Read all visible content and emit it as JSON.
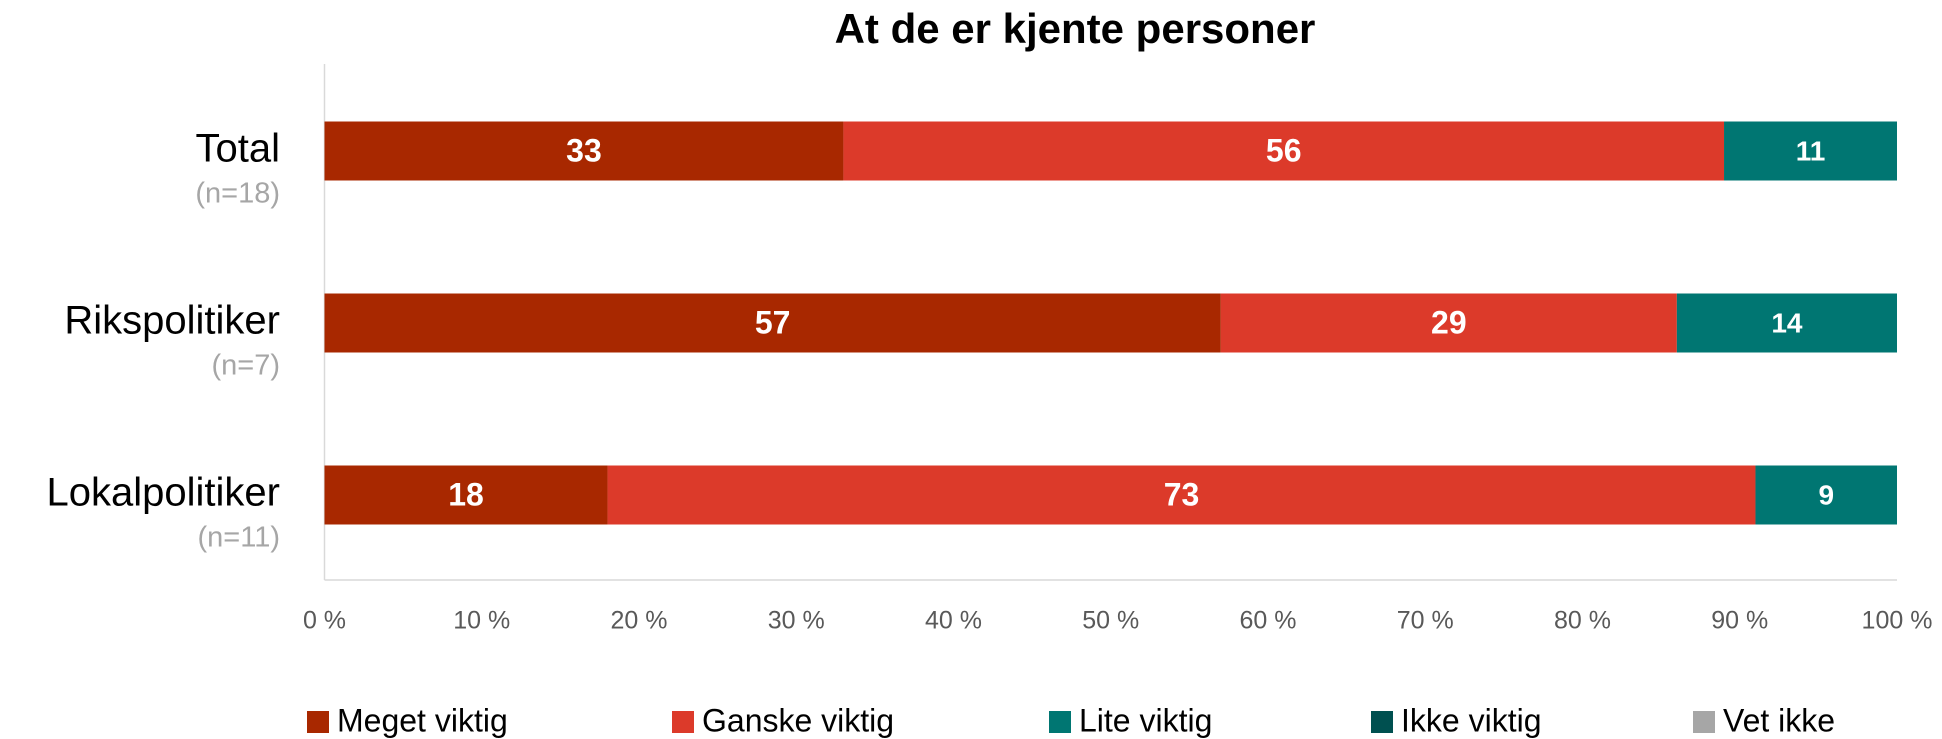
{
  "chart_data": {
    "type": "stacked-bar-horizontal",
    "title": "At de er kjente personer",
    "categories": [
      "Total",
      "Rikspolitiker",
      "Lokalpolitiker"
    ],
    "category_notes": [
      "(n=18)",
      "(n=7)",
      "(n=11)"
    ],
    "series": [
      {
        "name": "Meget viktig",
        "color": "#a82800",
        "values": [
          33,
          57,
          18
        ]
      },
      {
        "name": "Ganske viktig",
        "color": "#dc3a2a",
        "values": [
          56,
          29,
          73
        ]
      },
      {
        "name": "Lite viktig",
        "color": "#007672",
        "values": [
          11,
          14,
          9
        ]
      },
      {
        "name": "Ikke viktig",
        "color": "#005050",
        "values": [
          0,
          0,
          0
        ]
      },
      {
        "name": "Vet ikke",
        "color": "#a6a6a6",
        "values": [
          0,
          0,
          0
        ]
      }
    ],
    "xlim": [
      0,
      100
    ],
    "xticks": [
      {
        "value": 0,
        "label": "0 %"
      },
      {
        "value": 10,
        "label": "10 %"
      },
      {
        "value": 20,
        "label": "20 %"
      },
      {
        "value": 30,
        "label": "30 %"
      },
      {
        "value": 40,
        "label": "40 %"
      },
      {
        "value": 50,
        "label": "50 %"
      },
      {
        "value": 60,
        "label": "60 %"
      },
      {
        "value": 70,
        "label": "70 %"
      },
      {
        "value": 80,
        "label": "80 %"
      },
      {
        "value": 90,
        "label": "90 %"
      },
      {
        "value": 100,
        "label": "100 %"
      }
    ],
    "legend": "bottom"
  }
}
